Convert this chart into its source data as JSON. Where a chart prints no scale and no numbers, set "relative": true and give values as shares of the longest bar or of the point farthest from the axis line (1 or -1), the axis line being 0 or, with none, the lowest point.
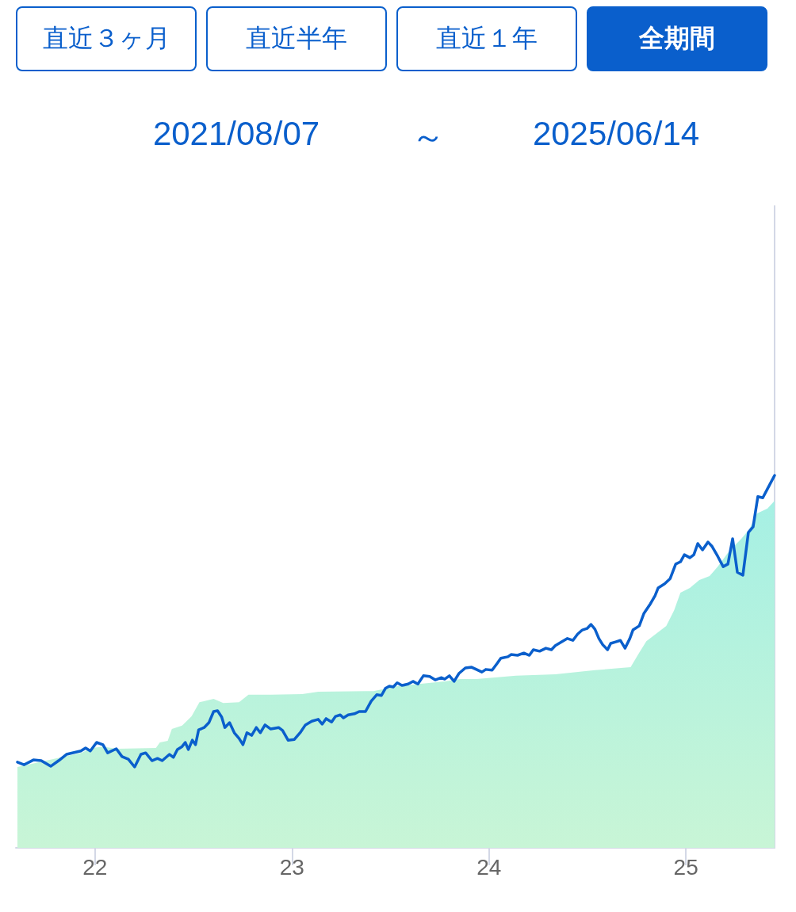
{
  "chart_data": {
    "type": "line",
    "relative": true,
    "annotations": [
      "直近３ヶ月",
      "直近半年",
      "直近１年",
      "全期間",
      "2021/08/07",
      "～",
      "2025/06/14"
    ],
    "xlim": [
      2021.598,
      2025.45
    ],
    "xticks": [
      {
        "value": 2022,
        "label": "22"
      },
      {
        "value": 2023,
        "label": "23"
      },
      {
        "value": 2024,
        "label": "24"
      },
      {
        "value": 2025,
        "label": "25"
      }
    ],
    "marker": "none",
    "grid": false,
    "series": [
      {
        "type": "area",
        "color": "#a6f0e4",
        "x": [
          2021.606,
          2021.928,
          2021.988,
          2022.04,
          2022.108,
          2022.309,
          2022.329,
          2022.369,
          2022.39,
          2022.442,
          2022.49,
          2022.53,
          2022.602,
          2022.651,
          2022.731,
          2022.779,
          2022.892,
          2023.052,
          2023.133,
          2023.373,
          2023.414,
          2023.534,
          2023.775,
          2023.855,
          2023.936,
          2024.137,
          2024.337,
          2024.538,
          2024.719,
          2024.759,
          2024.799,
          2024.9,
          2024.94,
          2024.972,
          2025.02,
          2025.068,
          2025.12,
          2025.161,
          2025.221,
          2025.281,
          2025.321,
          2025.361,
          2025.414,
          2025.45
        ],
        "values": [
          0.217,
          0.255,
          0.268,
          0.272,
          0.266,
          0.268,
          0.283,
          0.287,
          0.319,
          0.328,
          0.353,
          0.391,
          0.4,
          0.389,
          0.391,
          0.411,
          0.411,
          0.413,
          0.419,
          0.421,
          0.421,
          0.434,
          0.447,
          0.453,
          0.453,
          0.462,
          0.466,
          0.477,
          0.485,
          0.521,
          0.555,
          0.596,
          0.638,
          0.685,
          0.698,
          0.719,
          0.73,
          0.755,
          0.798,
          0.83,
          0.855,
          0.898,
          0.911,
          0.932
        ]
      },
      {
        "color": "#0a5fcc",
        "x": [
          2021.606,
          2021.639,
          2021.687,
          2021.727,
          2021.775,
          2021.815,
          2021.855,
          2021.928,
          2021.952,
          2021.976,
          2022.008,
          2022.04,
          2022.064,
          2022.108,
          2022.137,
          2022.169,
          2022.201,
          2022.233,
          2022.257,
          2022.289,
          2022.317,
          2022.341,
          2022.378,
          2022.398,
          2022.418,
          2022.442,
          2022.458,
          2022.474,
          2022.494,
          2022.51,
          2022.526,
          2022.554,
          2022.578,
          2022.602,
          2022.622,
          2022.643,
          2022.659,
          2022.683,
          2022.707,
          2022.731,
          2022.751,
          2022.771,
          2022.795,
          2022.819,
          2022.839,
          2022.863,
          2022.892,
          2022.932,
          2022.952,
          2022.98,
          2023.012,
          2023.044,
          2023.068,
          2023.1,
          2023.133,
          2023.153,
          2023.173,
          2023.201,
          2023.221,
          2023.245,
          2023.261,
          2023.285,
          2023.317,
          2023.341,
          2023.373,
          2023.402,
          2023.43,
          2023.454,
          2023.474,
          2023.494,
          2023.514,
          2023.534,
          2023.558,
          2023.59,
          2023.614,
          2023.639,
          2023.667,
          2023.699,
          2023.727,
          2023.759,
          2023.775,
          2023.799,
          2023.823,
          2023.847,
          2023.88,
          2023.912,
          2023.936,
          2023.964,
          2023.984,
          2024.016,
          2024.04,
          2024.06,
          2024.096,
          2024.112,
          2024.145,
          2024.177,
          2024.205,
          2024.225,
          2024.257,
          2024.289,
          2024.317,
          2024.337,
          2024.369,
          2024.398,
          2024.426,
          2024.45,
          2024.474,
          2024.498,
          2024.518,
          2024.538,
          2024.558,
          2024.578,
          2024.602,
          2024.618,
          2024.643,
          2024.667,
          2024.691,
          2024.715,
          2024.731,
          2024.763,
          2024.787,
          2024.819,
          2024.843,
          2024.859,
          2024.892,
          2024.92,
          2024.948,
          2024.972,
          2024.992,
          2025.02,
          2025.04,
          2025.06,
          2025.084,
          2025.112,
          2025.133,
          2025.161,
          2025.189,
          2025.213,
          2025.237,
          2025.261,
          2025.289,
          2025.317,
          2025.341,
          2025.365,
          2025.39,
          2025.414,
          2025.45
        ],
        "values": [
          0.23,
          0.223,
          0.236,
          0.234,
          0.219,
          0.234,
          0.251,
          0.26,
          0.268,
          0.26,
          0.283,
          0.277,
          0.255,
          0.266,
          0.245,
          0.238,
          0.217,
          0.251,
          0.255,
          0.234,
          0.24,
          0.234,
          0.251,
          0.243,
          0.264,
          0.272,
          0.283,
          0.264,
          0.289,
          0.277,
          0.317,
          0.323,
          0.336,
          0.366,
          0.368,
          0.351,
          0.323,
          0.336,
          0.309,
          0.294,
          0.277,
          0.309,
          0.302,
          0.323,
          0.309,
          0.33,
          0.319,
          0.323,
          0.315,
          0.289,
          0.291,
          0.311,
          0.33,
          0.34,
          0.345,
          0.332,
          0.347,
          0.338,
          0.353,
          0.357,
          0.349,
          0.357,
          0.36,
          0.366,
          0.366,
          0.394,
          0.411,
          0.409,
          0.428,
          0.434,
          0.432,
          0.443,
          0.436,
          0.44,
          0.447,
          0.44,
          0.462,
          0.46,
          0.451,
          0.457,
          0.453,
          0.462,
          0.447,
          0.468,
          0.483,
          0.485,
          0.479,
          0.472,
          0.479,
          0.477,
          0.494,
          0.509,
          0.513,
          0.519,
          0.517,
          0.523,
          0.517,
          0.532,
          0.528,
          0.536,
          0.532,
          0.543,
          0.553,
          0.562,
          0.557,
          0.574,
          0.585,
          0.589,
          0.6,
          0.587,
          0.562,
          0.545,
          0.532,
          0.549,
          0.553,
          0.557,
          0.536,
          0.562,
          0.585,
          0.596,
          0.63,
          0.655,
          0.677,
          0.698,
          0.709,
          0.723,
          0.762,
          0.768,
          0.787,
          0.779,
          0.787,
          0.817,
          0.8,
          0.821,
          0.809,
          0.783,
          0.755,
          0.762,
          0.83,
          0.74,
          0.732,
          0.847,
          0.862,
          0.943,
          0.94,
          0.964,
          1
        ]
      }
    ]
  }
}
